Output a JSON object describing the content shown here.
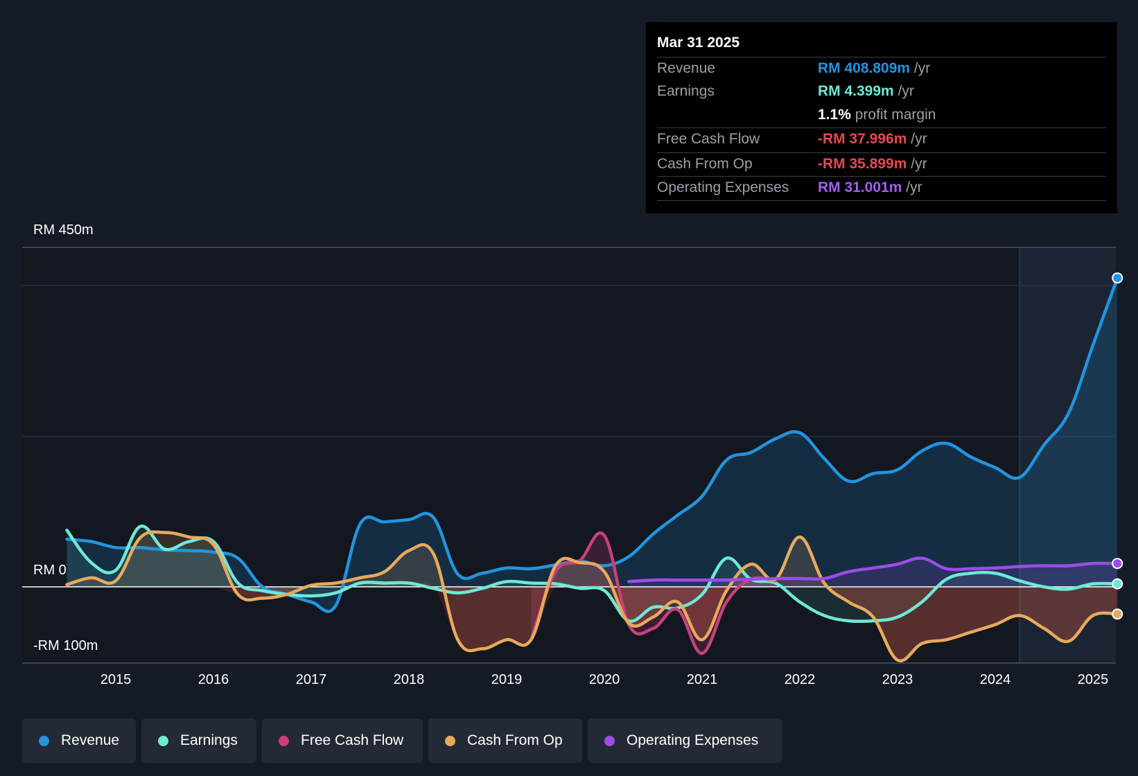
{
  "tooltip": {
    "date": "Mar 31 2025",
    "rows": [
      {
        "label": "Revenue",
        "value": "RM 408.809m",
        "unit": "/yr"
      },
      {
        "label": "Earnings",
        "value": "RM 4.399m",
        "unit": "/yr"
      },
      {
        "label": "",
        "value": "1.1%",
        "unit": "profit margin"
      },
      {
        "label": "Free Cash Flow",
        "value": "-RM 37.996m",
        "unit": "/yr"
      },
      {
        "label": "Cash From Op",
        "value": "-RM 35.899m",
        "unit": "/yr"
      },
      {
        "label": "Operating Expenses",
        "value": "RM 31.001m",
        "unit": "/yr"
      }
    ]
  },
  "axis": {
    "y_top_label": "RM 450m",
    "y_zero_label": "RM 0",
    "y_bottom_label": "-RM 100m"
  },
  "legend": [
    {
      "label": "Revenue",
      "color": "#2394df"
    },
    {
      "label": "Earnings",
      "color": "#6ee9d6"
    },
    {
      "label": "Free Cash Flow",
      "color": "#c9407a"
    },
    {
      "label": "Cash From Op",
      "color": "#e8aa5c"
    },
    {
      "label": "Operating Expenses",
      "color": "#9d4ce8"
    }
  ],
  "chart_data": {
    "type": "line",
    "title": "",
    "xlabel": "",
    "ylabel": "",
    "xlim": [
      2014.0,
      2025.25
    ],
    "ylim": [
      -100,
      450
    ],
    "x_ticks": [
      "2015",
      "2016",
      "2017",
      "2018",
      "2019",
      "2020",
      "2021",
      "2022",
      "2023",
      "2024",
      "2025"
    ],
    "highlight_from": 2024.25,
    "series": [
      {
        "name": "Revenue",
        "color": "#2394df",
        "fill": true,
        "points": [
          [
            2014.5,
            63
          ],
          [
            2014.75,
            60
          ],
          [
            2015.0,
            52
          ],
          [
            2015.25,
            52
          ],
          [
            2015.5,
            49
          ],
          [
            2015.75,
            48
          ],
          [
            2016.0,
            46
          ],
          [
            2016.25,
            38
          ],
          [
            2016.5,
            0
          ],
          [
            2016.75,
            -10
          ],
          [
            2017.0,
            -20
          ],
          [
            2017.25,
            -25
          ],
          [
            2017.5,
            83
          ],
          [
            2017.75,
            86
          ],
          [
            2018.0,
            89
          ],
          [
            2018.25,
            92
          ],
          [
            2018.5,
            17
          ],
          [
            2018.75,
            18
          ],
          [
            2019.0,
            25
          ],
          [
            2019.25,
            24
          ],
          [
            2019.5,
            29
          ],
          [
            2019.75,
            34
          ],
          [
            2020.0,
            28
          ],
          [
            2020.25,
            40
          ],
          [
            2020.5,
            70
          ],
          [
            2020.75,
            95
          ],
          [
            2021.0,
            120
          ],
          [
            2021.25,
            168
          ],
          [
            2021.5,
            178
          ],
          [
            2021.75,
            196
          ],
          [
            2022.0,
            204
          ],
          [
            2022.25,
            170
          ],
          [
            2022.5,
            140
          ],
          [
            2022.75,
            150
          ],
          [
            2023.0,
            155
          ],
          [
            2023.25,
            180
          ],
          [
            2023.5,
            190
          ],
          [
            2023.75,
            172
          ],
          [
            2024.0,
            158
          ],
          [
            2024.25,
            145
          ],
          [
            2024.5,
            188
          ],
          [
            2024.75,
            230
          ],
          [
            2025.0,
            320
          ],
          [
            2025.25,
            409
          ]
        ]
      },
      {
        "name": "Earnings",
        "color": "#6ee9d6",
        "fill": true,
        "points": [
          [
            2014.5,
            75
          ],
          [
            2014.75,
            32
          ],
          [
            2015.0,
            22
          ],
          [
            2015.25,
            80
          ],
          [
            2015.5,
            50
          ],
          [
            2015.75,
            60
          ],
          [
            2016.0,
            60
          ],
          [
            2016.25,
            5
          ],
          [
            2016.5,
            -5
          ],
          [
            2016.75,
            -10
          ],
          [
            2017.0,
            -12
          ],
          [
            2017.25,
            -8
          ],
          [
            2017.5,
            5
          ],
          [
            2017.75,
            5
          ],
          [
            2018.0,
            5
          ],
          [
            2018.25,
            -2
          ],
          [
            2018.5,
            -8
          ],
          [
            2018.75,
            -2
          ],
          [
            2019.0,
            7
          ],
          [
            2019.25,
            5
          ],
          [
            2019.5,
            4
          ],
          [
            2019.75,
            -2
          ],
          [
            2020.0,
            -5
          ],
          [
            2020.25,
            -45
          ],
          [
            2020.5,
            -27
          ],
          [
            2020.75,
            -28
          ],
          [
            2021.0,
            -10
          ],
          [
            2021.25,
            38
          ],
          [
            2021.5,
            10
          ],
          [
            2021.75,
            5
          ],
          [
            2022.0,
            -20
          ],
          [
            2022.25,
            -38
          ],
          [
            2022.5,
            -45
          ],
          [
            2022.75,
            -45
          ],
          [
            2023.0,
            -40
          ],
          [
            2023.25,
            -20
          ],
          [
            2023.5,
            10
          ],
          [
            2023.75,
            18
          ],
          [
            2024.0,
            18
          ],
          [
            2024.25,
            8
          ],
          [
            2024.5,
            0
          ],
          [
            2024.75,
            -3
          ],
          [
            2025.0,
            4
          ],
          [
            2025.25,
            4
          ]
        ]
      },
      {
        "name": "Free Cash Flow",
        "color": "#c9407a",
        "fill": true,
        "points": [
          [
            2019.25,
            -70
          ],
          [
            2019.5,
            20
          ],
          [
            2019.75,
            35
          ],
          [
            2020.0,
            68
          ],
          [
            2020.25,
            -50
          ],
          [
            2020.5,
            -55
          ],
          [
            2020.75,
            -30
          ],
          [
            2021.0,
            -88
          ],
          [
            2021.25,
            -20
          ],
          [
            2021.5,
            10
          ],
          [
            2021.75,
            8
          ]
        ]
      },
      {
        "name": "Cash From Op",
        "color": "#e8aa5c",
        "fill": true,
        "points": [
          [
            2014.5,
            3
          ],
          [
            2014.75,
            12
          ],
          [
            2015.0,
            8
          ],
          [
            2015.25,
            65
          ],
          [
            2015.5,
            72
          ],
          [
            2015.75,
            66
          ],
          [
            2016.0,
            56
          ],
          [
            2016.25,
            -10
          ],
          [
            2016.5,
            -15
          ],
          [
            2016.75,
            -10
          ],
          [
            2017.0,
            2
          ],
          [
            2017.25,
            5
          ],
          [
            2017.5,
            12
          ],
          [
            2017.75,
            20
          ],
          [
            2018.0,
            48
          ],
          [
            2018.25,
            44
          ],
          [
            2018.5,
            -70
          ],
          [
            2018.75,
            -82
          ],
          [
            2019.0,
            -70
          ],
          [
            2019.25,
            -70
          ],
          [
            2019.5,
            28
          ],
          [
            2019.75,
            32
          ],
          [
            2020.0,
            20
          ],
          [
            2020.25,
            -48
          ],
          [
            2020.5,
            -40
          ],
          [
            2020.75,
            -20
          ],
          [
            2021.0,
            -70
          ],
          [
            2021.25,
            -5
          ],
          [
            2021.5,
            30
          ],
          [
            2021.75,
            10
          ],
          [
            2022.0,
            66
          ],
          [
            2022.25,
            5
          ],
          [
            2022.5,
            -20
          ],
          [
            2022.75,
            -40
          ],
          [
            2023.0,
            -97
          ],
          [
            2023.25,
            -75
          ],
          [
            2023.5,
            -70
          ],
          [
            2023.75,
            -60
          ],
          [
            2024.0,
            -50
          ],
          [
            2024.25,
            -38
          ],
          [
            2024.5,
            -55
          ],
          [
            2024.75,
            -72
          ],
          [
            2025.0,
            -38
          ],
          [
            2025.25,
            -36
          ]
        ]
      },
      {
        "name": "Operating Expenses",
        "color": "#9d4ce8",
        "fill": true,
        "points": [
          [
            2020.25,
            7
          ],
          [
            2020.5,
            9
          ],
          [
            2020.75,
            9
          ],
          [
            2021.0,
            9
          ],
          [
            2021.25,
            9
          ],
          [
            2021.5,
            10
          ],
          [
            2021.75,
            11
          ],
          [
            2022.0,
            11
          ],
          [
            2022.25,
            11
          ],
          [
            2022.5,
            20
          ],
          [
            2022.75,
            25
          ],
          [
            2023.0,
            30
          ],
          [
            2023.25,
            38
          ],
          [
            2023.5,
            24
          ],
          [
            2023.75,
            24
          ],
          [
            2024.0,
            25
          ],
          [
            2024.25,
            27
          ],
          [
            2024.5,
            28
          ],
          [
            2024.75,
            28
          ],
          [
            2025.0,
            31
          ],
          [
            2025.25,
            31
          ]
        ]
      }
    ]
  }
}
